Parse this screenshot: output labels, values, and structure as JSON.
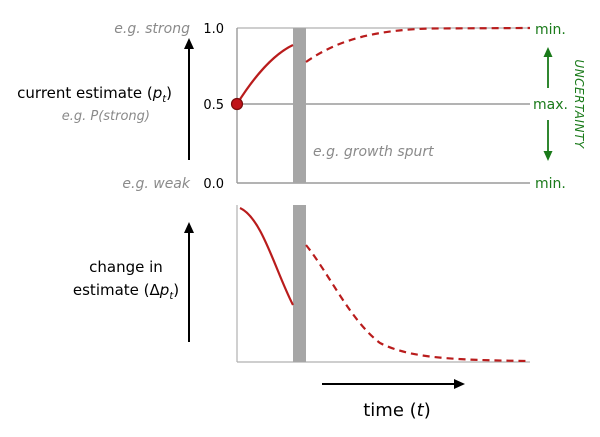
{
  "colors": {
    "curve": "#b91c1c",
    "uncertainty": "#1a7a1a",
    "gray_text": "#8a8a8a",
    "axis": "#9a9a9a",
    "bar": "#a6a6a6",
    "text": "#000000"
  },
  "top_panel": {
    "y_axis_label_main": "current estimate (",
    "y_axis_label_symbol": "p",
    "y_axis_label_subscript": "t",
    "y_axis_label_close": ")",
    "y_axis_sublabel": "e.g. P(strong)",
    "y_top_label": "e.g. strong",
    "y_bottom_label": "e.g. weak",
    "ticks": [
      "1.0",
      "0.5",
      "0.0"
    ],
    "event_label": "e.g. growth spurt"
  },
  "uncertainty": {
    "label": "UNCERTAINTY",
    "top": "min.",
    "middle": "max.",
    "bottom": "min."
  },
  "bottom_panel": {
    "y_axis_label_line1": "change in",
    "y_axis_label_line2_prefix": "estimate (Δ",
    "y_axis_label_symbol": "p",
    "y_axis_label_subscript": "t",
    "y_axis_label_close": ")"
  },
  "x_axis": {
    "label_prefix": "time (",
    "label_symbol": "t",
    "label_close": ")"
  }
}
